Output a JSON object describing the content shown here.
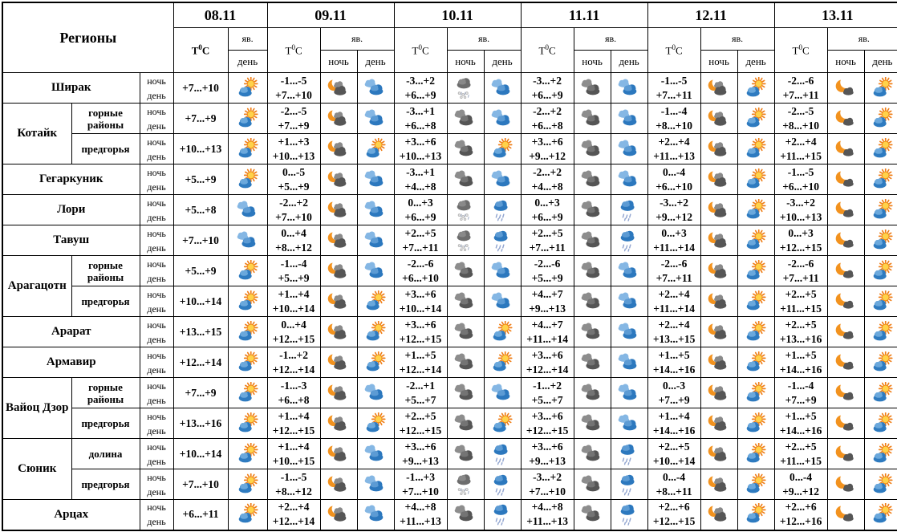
{
  "header": {
    "regions_label": "Регионы",
    "t_prefix": "T",
    "t_sup": "0",
    "t_suffix": "C",
    "phenomena_label": "яв.",
    "night_label": "ночь",
    "day_label": "день",
    "dates": [
      "08.11",
      "09.11",
      "10.11",
      "11.11",
      "12.11",
      "13.11"
    ]
  },
  "row_labels": {
    "night": "ночь",
    "day": "день"
  },
  "icon_names": {
    "sun-cloud": "sun-behind-cloud-icon",
    "cloudy": "blue-clouds-icon",
    "dark-cloud": "dark-clouds-icon",
    "moon-cloud": "moon-behind-cloud-icon",
    "moon-small-cloud": "moon-with-small-cloud-icon",
    "rain": "rain-cloud-icon",
    "sleet": "snow-and-rain-cloud-icon"
  },
  "rows": [
    {
      "region": "Ширак",
      "subregion": null,
      "group_size": 1,
      "forecast": [
        {
          "night_t": "",
          "day_t": "+7...+10",
          "day_icon": "sun-cloud"
        },
        {
          "night_t": "-1...-5",
          "day_t": "+7...+10",
          "night_icon": "moon-cloud",
          "day_icon": "cloudy"
        },
        {
          "night_t": "-3...+2",
          "day_t": "+6...+9",
          "night_icon": "sleet",
          "day_icon": "cloudy"
        },
        {
          "night_t": "-3...+2",
          "day_t": "+6...+9",
          "night_icon": "dark-cloud",
          "day_icon": "cloudy"
        },
        {
          "night_t": "-1...-5",
          "day_t": "+7...+11",
          "night_icon": "moon-cloud",
          "day_icon": "sun-cloud"
        },
        {
          "night_t": "-2...-6",
          "day_t": "+7...+11",
          "night_icon": "moon-small-cloud",
          "day_icon": "sun-cloud"
        }
      ]
    },
    {
      "region": "Котайк",
      "subregion": "горные районы",
      "group_size": 2,
      "forecast": [
        {
          "night_t": "",
          "day_t": "+7...+9",
          "day_icon": "sun-cloud"
        },
        {
          "night_t": "-2...-5",
          "day_t": "+7...+9",
          "night_icon": "moon-cloud",
          "day_icon": "cloudy"
        },
        {
          "night_t": "-3...+1",
          "day_t": "+6...+8",
          "night_icon": "dark-cloud",
          "day_icon": "cloudy"
        },
        {
          "night_t": "-2...+2",
          "day_t": "+6...+8",
          "night_icon": "dark-cloud",
          "day_icon": "cloudy"
        },
        {
          "night_t": "-1...-4",
          "day_t": "+8...+10",
          "night_icon": "moon-cloud",
          "day_icon": "sun-cloud"
        },
        {
          "night_t": "-2...-5",
          "day_t": "+8...+10",
          "night_icon": "moon-small-cloud",
          "day_icon": "sun-cloud"
        }
      ]
    },
    {
      "region": null,
      "subregion": "предгорья",
      "forecast": [
        {
          "night_t": "",
          "day_t": "+10...+13",
          "day_icon": "sun-cloud"
        },
        {
          "night_t": "+1...+3",
          "day_t": "+10...+13",
          "night_icon": "moon-cloud",
          "day_icon": "sun-cloud"
        },
        {
          "night_t": "+3...+6",
          "day_t": "+10...+13",
          "night_icon": "dark-cloud",
          "day_icon": "sun-cloud"
        },
        {
          "night_t": "+3...+6",
          "day_t": "+9...+12",
          "night_icon": "dark-cloud",
          "day_icon": "cloudy"
        },
        {
          "night_t": "+2...+4",
          "day_t": "+11...+13",
          "night_icon": "moon-cloud",
          "day_icon": "sun-cloud"
        },
        {
          "night_t": "+2...+4",
          "day_t": "+11...+15",
          "night_icon": "moon-small-cloud",
          "day_icon": "sun-cloud"
        }
      ]
    },
    {
      "region": "Гегаркуник",
      "subregion": null,
      "group_size": 1,
      "forecast": [
        {
          "night_t": "",
          "day_t": "+5...+9",
          "day_icon": "sun-cloud"
        },
        {
          "night_t": "0...-5",
          "day_t": "+5...+9",
          "night_icon": "moon-cloud",
          "day_icon": "cloudy"
        },
        {
          "night_t": "-3...+1",
          "day_t": "+4...+8",
          "night_icon": "dark-cloud",
          "day_icon": "cloudy"
        },
        {
          "night_t": "-2...+2",
          "day_t": "+4...+8",
          "night_icon": "dark-cloud",
          "day_icon": "cloudy"
        },
        {
          "night_t": "0...-4",
          "day_t": "+6...+10",
          "night_icon": "moon-cloud",
          "day_icon": "sun-cloud"
        },
        {
          "night_t": "-1...-5",
          "day_t": "+6...+10",
          "night_icon": "moon-small-cloud",
          "day_icon": "sun-cloud"
        }
      ]
    },
    {
      "region": "Лори",
      "subregion": null,
      "group_size": 1,
      "forecast": [
        {
          "night_t": "",
          "day_t": "+5...+8",
          "day_icon": "cloudy"
        },
        {
          "night_t": "-2...+2",
          "day_t": "+7...+10",
          "night_icon": "moon-cloud",
          "day_icon": "cloudy"
        },
        {
          "night_t": "0...+3",
          "day_t": "+6...+9",
          "night_icon": "sleet",
          "day_icon": "rain"
        },
        {
          "night_t": "0...+3",
          "day_t": "+6...+9",
          "night_icon": "dark-cloud",
          "day_icon": "rain"
        },
        {
          "night_t": "-3...+2",
          "day_t": "+9...+12",
          "night_icon": "moon-cloud",
          "day_icon": "sun-cloud"
        },
        {
          "night_t": "-3...+2",
          "day_t": "+10...+13",
          "night_icon": "moon-small-cloud",
          "day_icon": "sun-cloud"
        }
      ]
    },
    {
      "region": "Тавуш",
      "subregion": null,
      "group_size": 1,
      "forecast": [
        {
          "night_t": "",
          "day_t": "+7...+10",
          "day_icon": "cloudy"
        },
        {
          "night_t": "0...+4",
          "day_t": "+8...+12",
          "night_icon": "moon-cloud",
          "day_icon": "cloudy"
        },
        {
          "night_t": "+2...+5",
          "day_t": "+7...+11",
          "night_icon": "sleet",
          "day_icon": "rain"
        },
        {
          "night_t": "+2...+5",
          "day_t": "+7...+11",
          "night_icon": "dark-cloud",
          "day_icon": "rain"
        },
        {
          "night_t": "0...+3",
          "day_t": "+11...+14",
          "night_icon": "moon-cloud",
          "day_icon": "sun-cloud"
        },
        {
          "night_t": "0...+3",
          "day_t": "+12...+15",
          "night_icon": "moon-small-cloud",
          "day_icon": "sun-cloud"
        }
      ]
    },
    {
      "region": "Арагацотн",
      "subregion": "горные районы",
      "group_size": 2,
      "forecast": [
        {
          "night_t": "",
          "day_t": "+5...+9",
          "day_icon": "sun-cloud"
        },
        {
          "night_t": "-1...-4",
          "day_t": "+5...+9",
          "night_icon": "moon-cloud",
          "day_icon": "cloudy"
        },
        {
          "night_t": "-2...-6",
          "day_t": "+6...+10",
          "night_icon": "dark-cloud",
          "day_icon": "cloudy"
        },
        {
          "night_t": "-2...-6",
          "day_t": "+5...+9",
          "night_icon": "dark-cloud",
          "day_icon": "cloudy"
        },
        {
          "night_t": "-2...-6",
          "day_t": "+7...+11",
          "night_icon": "moon-cloud",
          "day_icon": "sun-cloud"
        },
        {
          "night_t": "-2...-6",
          "day_t": "+7...+11",
          "night_icon": "moon-small-cloud",
          "day_icon": "sun-cloud"
        }
      ]
    },
    {
      "region": null,
      "subregion": "предгорья",
      "forecast": [
        {
          "night_t": "",
          "day_t": "+10...+14",
          "day_icon": "sun-cloud"
        },
        {
          "night_t": "+1...+4",
          "day_t": "+10...+14",
          "night_icon": "moon-cloud",
          "day_icon": "sun-cloud"
        },
        {
          "night_t": "+3...+6",
          "day_t": "+10...+14",
          "night_icon": "dark-cloud",
          "day_icon": "cloudy"
        },
        {
          "night_t": "+4...+7",
          "day_t": "+9...+13",
          "night_icon": "dark-cloud",
          "day_icon": "cloudy"
        },
        {
          "night_t": "+2...+4",
          "day_t": "+11...+14",
          "night_icon": "moon-cloud",
          "day_icon": "sun-cloud"
        },
        {
          "night_t": "+2...+5",
          "day_t": "+11...+15",
          "night_icon": "moon-small-cloud",
          "day_icon": "sun-cloud"
        }
      ]
    },
    {
      "region": "Арарат",
      "subregion": null,
      "group_size": 1,
      "forecast": [
        {
          "night_t": "",
          "day_t": "+13...+15",
          "day_icon": "sun-cloud"
        },
        {
          "night_t": "0...+4",
          "day_t": "+12...+15",
          "night_icon": "moon-cloud",
          "day_icon": "sun-cloud"
        },
        {
          "night_t": "+3...+6",
          "day_t": "+12...+15",
          "night_icon": "dark-cloud",
          "day_icon": "sun-cloud"
        },
        {
          "night_t": "+4...+7",
          "day_t": "+11...+14",
          "night_icon": "dark-cloud",
          "day_icon": "cloudy"
        },
        {
          "night_t": "+2...+4",
          "day_t": "+13...+15",
          "night_icon": "moon-cloud",
          "day_icon": "sun-cloud"
        },
        {
          "night_t": "+2...+5",
          "day_t": "+13...+16",
          "night_icon": "moon-small-cloud",
          "day_icon": "sun-cloud"
        }
      ]
    },
    {
      "region": "Армавир",
      "subregion": null,
      "group_size": 1,
      "forecast": [
        {
          "night_t": "",
          "day_t": "+12...+14",
          "day_icon": "sun-cloud"
        },
        {
          "night_t": "-1...+2",
          "day_t": "+12...+14",
          "night_icon": "moon-cloud",
          "day_icon": "sun-cloud"
        },
        {
          "night_t": "+1...+5",
          "day_t": "+12...+14",
          "night_icon": "dark-cloud",
          "day_icon": "sun-cloud"
        },
        {
          "night_t": "+3...+6",
          "day_t": "+12...+14",
          "night_icon": "dark-cloud",
          "day_icon": "cloudy"
        },
        {
          "night_t": "+1...+5",
          "day_t": "+14...+16",
          "night_icon": "moon-cloud",
          "day_icon": "sun-cloud"
        },
        {
          "night_t": "+1...+5",
          "day_t": "+14...+16",
          "night_icon": "moon-small-cloud",
          "day_icon": "sun-cloud"
        }
      ]
    },
    {
      "region": "Вайоц Дзор",
      "subregion": "горные районы",
      "group_size": 2,
      "forecast": [
        {
          "night_t": "",
          "day_t": "+7...+9",
          "day_icon": "sun-cloud"
        },
        {
          "night_t": "-1...-3",
          "day_t": "+6...+8",
          "night_icon": "moon-cloud",
          "day_icon": "cloudy"
        },
        {
          "night_t": "-2...+1",
          "day_t": "+5...+7",
          "night_icon": "dark-cloud",
          "day_icon": "cloudy"
        },
        {
          "night_t": "-1...+2",
          "day_t": "+5...+7",
          "night_icon": "dark-cloud",
          "day_icon": "cloudy"
        },
        {
          "night_t": "0...-3",
          "day_t": "+7...+9",
          "night_icon": "moon-cloud",
          "day_icon": "sun-cloud"
        },
        {
          "night_t": "-1...-4",
          "day_t": "+7...+9",
          "night_icon": "moon-small-cloud",
          "day_icon": "sun-cloud"
        }
      ]
    },
    {
      "region": null,
      "subregion": "предгорья",
      "forecast": [
        {
          "night_t": "",
          "day_t": "+13...+16",
          "day_icon": "sun-cloud"
        },
        {
          "night_t": "+1...+4",
          "day_t": "+12...+15",
          "night_icon": "moon-cloud",
          "day_icon": "sun-cloud"
        },
        {
          "night_t": "+2...+5",
          "day_t": "+12...+15",
          "night_icon": "dark-cloud",
          "day_icon": "sun-cloud"
        },
        {
          "night_t": "+3...+6",
          "day_t": "+12...+15",
          "night_icon": "dark-cloud",
          "day_icon": "cloudy"
        },
        {
          "night_t": "+1...+4",
          "day_t": "+14...+16",
          "night_icon": "moon-cloud",
          "day_icon": "sun-cloud"
        },
        {
          "night_t": "+1...+5",
          "day_t": "+14...+16",
          "night_icon": "moon-small-cloud",
          "day_icon": "sun-cloud"
        }
      ]
    },
    {
      "region": "Сюник",
      "subregion": "долина",
      "group_size": 2,
      "forecast": [
        {
          "night_t": "",
          "day_t": "+10...+14",
          "day_icon": "sun-cloud"
        },
        {
          "night_t": "+1...+4",
          "day_t": "+10...+15",
          "night_icon": "moon-cloud",
          "day_icon": "cloudy"
        },
        {
          "night_t": "+3...+6",
          "day_t": "+9...+13",
          "night_icon": "dark-cloud",
          "day_icon": "rain"
        },
        {
          "night_t": "+3...+6",
          "day_t": "+9...+13",
          "night_icon": "dark-cloud",
          "day_icon": "rain"
        },
        {
          "night_t": "+2...+5",
          "day_t": "+10...+14",
          "night_icon": "moon-cloud",
          "day_icon": "sun-cloud"
        },
        {
          "night_t": "+2...+5",
          "day_t": "+11...+15",
          "night_icon": "moon-small-cloud",
          "day_icon": "sun-cloud"
        }
      ]
    },
    {
      "region": null,
      "subregion": "предгорья",
      "forecast": [
        {
          "night_t": "",
          "day_t": "+7...+10",
          "day_icon": "sun-cloud"
        },
        {
          "night_t": "-1...-5",
          "day_t": "+8...+12",
          "night_icon": "moon-cloud",
          "day_icon": "cloudy"
        },
        {
          "night_t": "-1...+3",
          "day_t": "+7...+10",
          "night_icon": "sleet",
          "day_icon": "rain"
        },
        {
          "night_t": "-3...+2",
          "day_t": "+7...+10",
          "night_icon": "dark-cloud",
          "day_icon": "rain"
        },
        {
          "night_t": "0...-4",
          "day_t": "+8...+11",
          "night_icon": "moon-cloud",
          "day_icon": "sun-cloud"
        },
        {
          "night_t": "0...-4",
          "day_t": "+9...+12",
          "night_icon": "moon-small-cloud",
          "day_icon": "sun-cloud"
        }
      ]
    },
    {
      "region": "Арцах",
      "subregion": null,
      "group_size": 1,
      "forecast": [
        {
          "night_t": "",
          "day_t": "+6...+11",
          "day_icon": "sun-cloud"
        },
        {
          "night_t": "+2...+4",
          "day_t": "+12...+14",
          "night_icon": "moon-cloud",
          "day_icon": "cloudy"
        },
        {
          "night_t": "+4...+8",
          "day_t": "+11...+13",
          "night_icon": "dark-cloud",
          "day_icon": "rain"
        },
        {
          "night_t": "+4...+8",
          "day_t": "+11...+13",
          "night_icon": "dark-cloud",
          "day_icon": "rain"
        },
        {
          "night_t": "+2...+6",
          "day_t": "+12...+15",
          "night_icon": "moon-cloud",
          "day_icon": "sun-cloud"
        },
        {
          "night_t": "+2...+6",
          "day_t": "+12...+16",
          "night_icon": "moon-small-cloud",
          "day_icon": "sun-cloud"
        }
      ]
    }
  ]
}
